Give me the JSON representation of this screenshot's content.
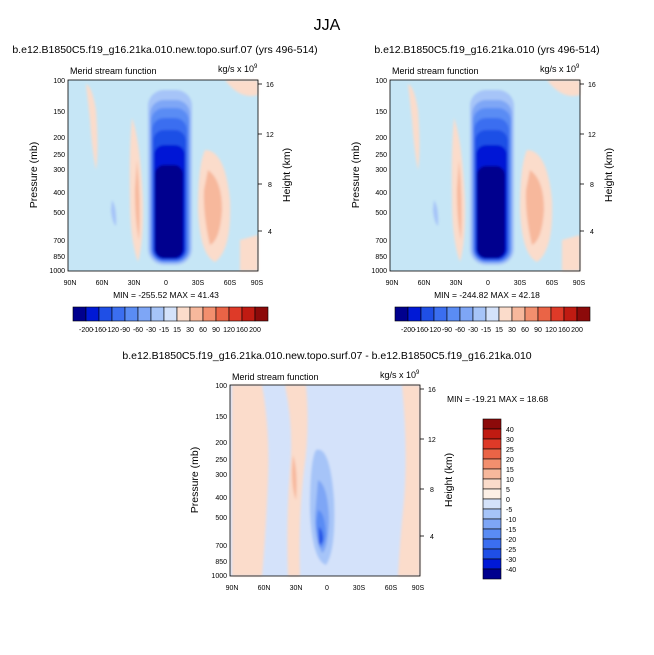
{
  "figure": {
    "title": "JJA"
  },
  "chart_data": [
    {
      "type": "heatmap",
      "panel": "top-left",
      "title": "b.e12.B1850C5.f19_g16.21ka.010.new.topo.surf.07 (yrs 496-514)",
      "subtitle_left": "Merid stream function",
      "units": "kg/s x 10",
      "units_exp": "9",
      "ylabel_left": "Pressure (mb)",
      "ylabel_right": "Height (km)",
      "x_ticks": [
        "90N",
        "60N",
        "30N",
        "0",
        "30S",
        "60S",
        "90S"
      ],
      "y_ticks": [
        "100",
        "150",
        "200",
        "250",
        "300",
        "400",
        "500",
        "700",
        "850",
        "1000"
      ],
      "height_ticks": [
        "16",
        "12",
        "8",
        "4"
      ],
      "min_max": "MIN = -255.52   MAX = 41.43",
      "colorbar_labels": [
        "-200",
        "-160",
        "-120",
        "-90",
        "-60",
        "-30",
        "-15",
        "15",
        "30",
        "60",
        "90",
        "120",
        "160",
        "200"
      ]
    },
    {
      "type": "heatmap",
      "panel": "top-right",
      "title": "b.e12.B1850C5.f19_g16.21ka.010 (yrs 496-514)",
      "subtitle_left": "Merid stream function",
      "units": "kg/s x 10",
      "units_exp": "9",
      "ylabel_left": "Pressure (mb)",
      "ylabel_right": "Height (km)",
      "x_ticks": [
        "90N",
        "60N",
        "30N",
        "0",
        "30S",
        "60S",
        "90S"
      ],
      "y_ticks": [
        "100",
        "150",
        "200",
        "250",
        "300",
        "400",
        "500",
        "700",
        "850",
        "1000"
      ],
      "height_ticks": [
        "16",
        "12",
        "8",
        "4"
      ],
      "min_max": "MIN = -244.82   MAX = 42.18",
      "colorbar_labels": [
        "-200",
        "-160",
        "-120",
        "-90",
        "-60",
        "-30",
        "-15",
        "15",
        "30",
        "60",
        "90",
        "120",
        "160",
        "200"
      ]
    },
    {
      "type": "heatmap",
      "panel": "bottom",
      "title": "b.e12.B1850C5.f19_g16.21ka.010.new.topo.surf.07 - b.e12.B1850C5.f19_g16.21ka.010",
      "subtitle_left": "Merid stream function",
      "units": "kg/s x 10",
      "units_exp": "9",
      "ylabel_left": "Pressure (mb)",
      "ylabel_right": "Height (km)",
      "x_ticks": [
        "90N",
        "60N",
        "30N",
        "0",
        "30S",
        "60S",
        "90S"
      ],
      "y_ticks": [
        "100",
        "150",
        "200",
        "250",
        "300",
        "400",
        "500",
        "700",
        "850",
        "1000"
      ],
      "height_ticks": [
        "16",
        "12",
        "8",
        "4"
      ],
      "min_max": "MIN = -19.21   MAX = 18.68",
      "colorbar_labels": [
        "40",
        "30",
        "25",
        "20",
        "15",
        "10",
        "5",
        "0",
        "-5",
        "-10",
        "-15",
        "-20",
        "-25",
        "-30",
        "-40"
      ]
    }
  ],
  "colors": {
    "scale_15": [
      "#00008e",
      "#0019d6",
      "#1f4fe6",
      "#3b6ef0",
      "#5a8cf4",
      "#7ea6f6",
      "#a6c4f8",
      "#d4e2fa",
      "#fbdccb",
      "#f7b89c",
      "#f28f6e",
      "#ea6446",
      "#de3a28",
      "#c01b12",
      "#8c0a0a"
    ],
    "background_cyan": "#c6e6f6"
  }
}
